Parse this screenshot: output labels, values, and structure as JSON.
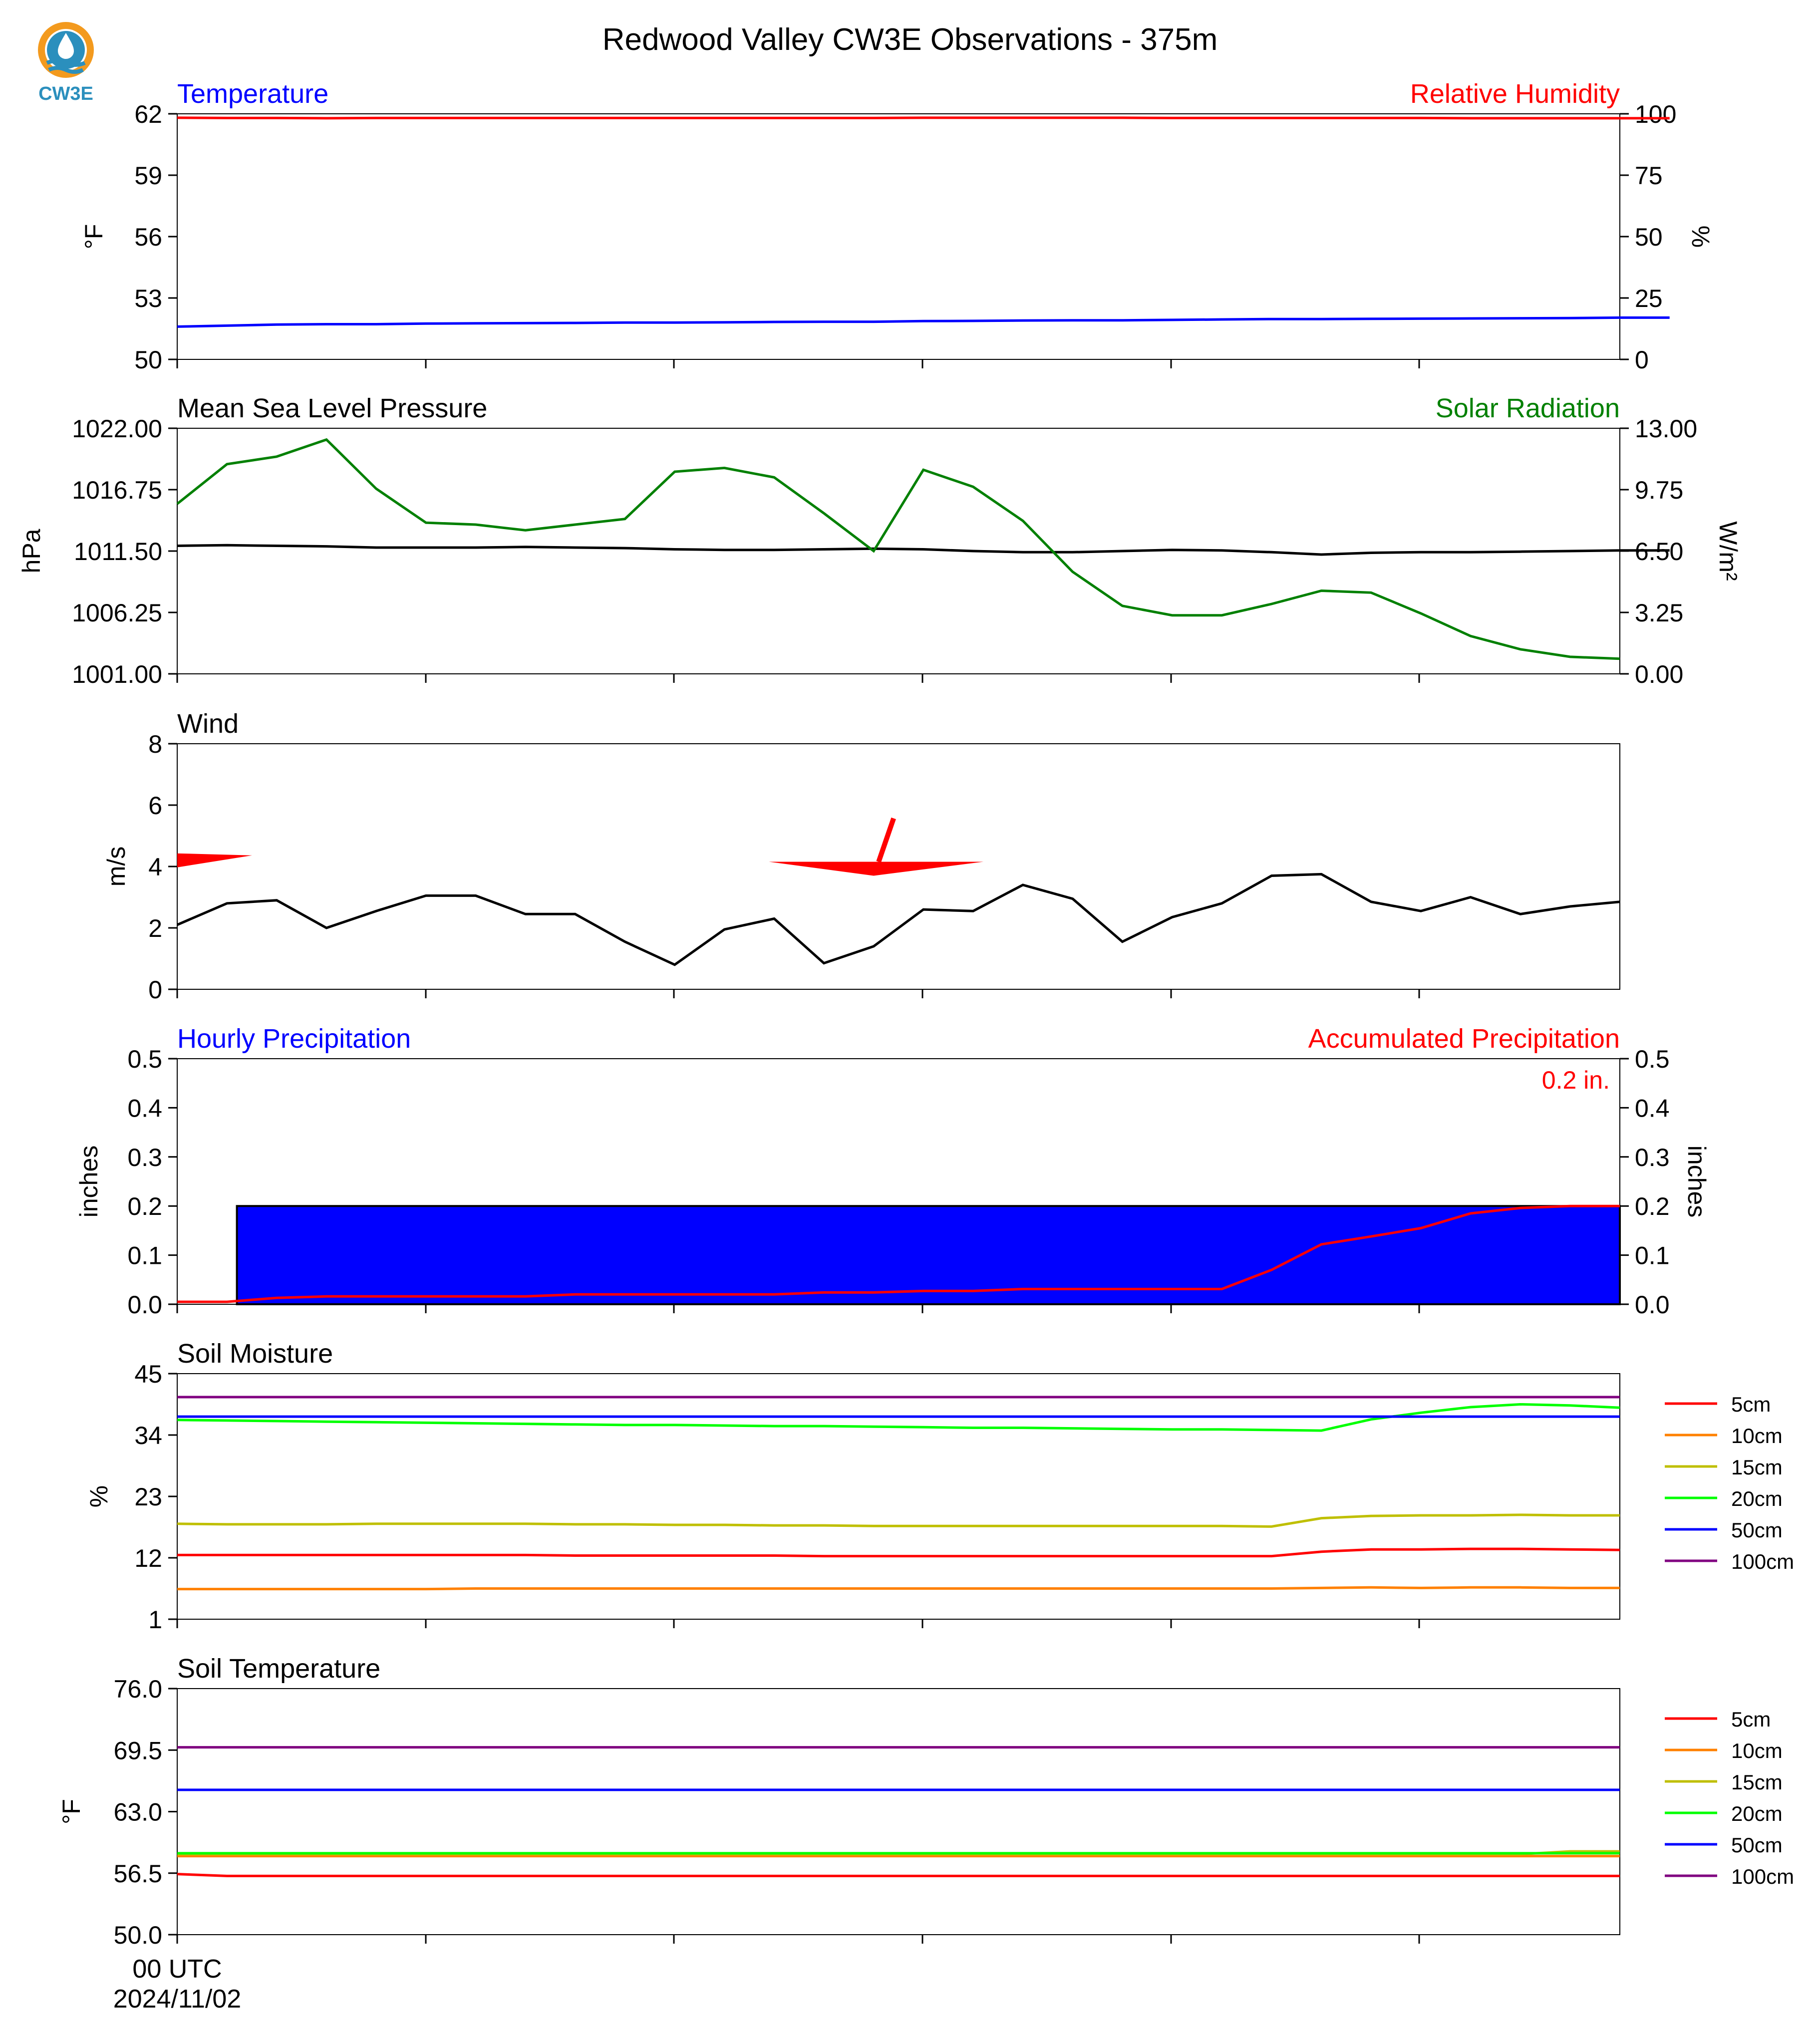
{
  "title": "Redwood Valley CW3E Observations - 375m",
  "logo": {
    "text": "CW3E"
  },
  "x_axis": {
    "ticks": [
      "00 UTC\n2024/11/02",
      "",
      "",
      "",
      "",
      ""
    ],
    "first_label_line1": "00 UTC",
    "first_label_line2": "2024/11/02"
  },
  "colors": {
    "temperature": "#0000ff",
    "humidity": "#ff0000",
    "pressure": "#000000",
    "solar": "#008000",
    "wind": "#000000",
    "barb": "#ff0000",
    "hourly_precip": "#0000ff",
    "accum_precip": "#ff0000",
    "d5": "#ff0000",
    "d10": "#ff8000",
    "d15": "#bfbf00",
    "d20": "#00ff00",
    "d50": "#0000ff",
    "d100": "#800080"
  },
  "chart_data": [
    {
      "type": "line",
      "title_left": "Temperature",
      "title_right": "Relative Humidity",
      "ylabel": "°F",
      "ylabel_right": "%",
      "ylim": [
        50,
        62
      ],
      "yticks": [
        "62",
        "59",
        "56",
        "53",
        "50"
      ],
      "ylim_right": [
        0,
        100
      ],
      "yticks_right": [
        "100",
        "75",
        "50",
        "25",
        "0"
      ],
      "series": [
        {
          "name": "Temperature",
          "axis": "left",
          "color": "#0000ff",
          "values": [
            51.6,
            51.65,
            51.7,
            51.72,
            51.72,
            51.75,
            51.76,
            51.77,
            51.78,
            51.8,
            51.8,
            51.81,
            51.83,
            51.84,
            51.84,
            51.87,
            51.88,
            51.9,
            51.91,
            51.91,
            51.93,
            51.95,
            51.97,
            51.97,
            51.98,
            51.99,
            52.0,
            52.01,
            52.02,
            52.04,
            52.04
          ]
        },
        {
          "name": "Relative Humidity",
          "axis": "right",
          "color": "#ff0000",
          "values": [
            98.4,
            98.3,
            98.3,
            98.2,
            98.3,
            98.3,
            98.3,
            98.3,
            98.3,
            98.3,
            98.3,
            98.3,
            98.3,
            98.3,
            98.3,
            98.4,
            98.4,
            98.4,
            98.4,
            98.4,
            98.3,
            98.3,
            98.3,
            98.3,
            98.3,
            98.3,
            98.2,
            98.2,
            98.2,
            98.2,
            98.2
          ]
        }
      ]
    },
    {
      "type": "line",
      "title_left": "Mean Sea Level Pressure",
      "title_right": "Solar Radiation",
      "ylabel": "hPa",
      "ylabel_right": "W/m²",
      "ylim": [
        1001.0,
        1022.0
      ],
      "yticks": [
        "1022.00",
        "1016.75",
        "1011.50",
        "1006.25",
        "1001.00"
      ],
      "ylim_right": [
        0.0,
        13.0
      ],
      "yticks_right": [
        "13.00",
        "9.75",
        "6.50",
        "3.25",
        "0.00"
      ],
      "series": [
        {
          "name": "Mean Sea Level Pressure",
          "axis": "left",
          "color": "#000000",
          "values": [
            1011.95,
            1012.0,
            1011.95,
            1011.9,
            1011.8,
            1011.8,
            1011.8,
            1011.85,
            1011.8,
            1011.75,
            1011.65,
            1011.6,
            1011.6,
            1011.65,
            1011.7,
            1011.65,
            1011.5,
            1011.4,
            1011.4,
            1011.5,
            1011.6,
            1011.55,
            1011.4,
            1011.2,
            1011.35,
            1011.4,
            1011.4,
            1011.45,
            1011.5,
            1011.55,
            1011.55
          ]
        },
        {
          "name": "Solar Radiation",
          "axis": "right",
          "color": "#008000",
          "values": [
            9.0,
            11.1,
            11.5,
            12.4,
            9.8,
            8.0,
            7.9,
            7.6,
            7.9,
            8.2,
            10.7,
            10.9,
            10.4,
            8.5,
            6.5,
            10.8,
            9.9,
            8.1,
            5.4,
            3.6,
            3.1,
            3.1,
            3.7,
            4.4,
            4.3,
            3.2,
            2.0,
            1.3,
            0.9,
            0.8
          ]
        }
      ]
    },
    {
      "type": "line",
      "title_left": "Wind",
      "ylabel": "m/s",
      "ylim": [
        0,
        8
      ],
      "yticks": [
        "8",
        "6",
        "4",
        "2",
        "0"
      ],
      "series": [
        {
          "name": "Wind",
          "axis": "left",
          "color": "#000000",
          "values": [
            2.1,
            2.8,
            2.9,
            2.0,
            2.55,
            3.05,
            3.05,
            2.45,
            2.45,
            1.55,
            0.8,
            1.95,
            2.3,
            0.85,
            1.4,
            2.6,
            2.55,
            3.4,
            2.95,
            1.55,
            2.35,
            2.8,
            3.7,
            3.75,
            2.85,
            2.55,
            3.0,
            2.45,
            2.7,
            2.85
          ]
        }
      ],
      "barbs": [
        {
          "hour": 0,
          "speed_level": 4.2
        },
        {
          "hour": 14,
          "speed_level": 3.7
        }
      ]
    },
    {
      "type": "bar",
      "title_left": "Hourly Precipitation",
      "title_right": "Accumulated Precipitation",
      "annotation": "0.2 in.",
      "ylabel": "inches",
      "ylabel_right": "inches",
      "ylim": [
        0.0,
        0.5
      ],
      "yticks": [
        "0.5",
        "0.4",
        "0.3",
        "0.2",
        "0.1",
        "0.0"
      ],
      "ylim_right": [
        0.0,
        0.5
      ],
      "yticks_right": [
        "0.5",
        "0.4",
        "0.3",
        "0.2",
        "0.1",
        "0.0"
      ],
      "hourly": {
        "start_hour": 1.2,
        "end_hour": 29,
        "value": 0.2
      },
      "series": [
        {
          "name": "Accumulated Precipitation",
          "axis": "right",
          "color": "#ff0000",
          "values": [
            0.005,
            0.005,
            0.013,
            0.016,
            0.016,
            0.016,
            0.016,
            0.016,
            0.02,
            0.02,
            0.02,
            0.02,
            0.02,
            0.024,
            0.024,
            0.027,
            0.027,
            0.031,
            0.031,
            0.031,
            0.031,
            0.031,
            0.07,
            0.122,
            0.138,
            0.155,
            0.185,
            0.196,
            0.2,
            0.2
          ]
        }
      ]
    },
    {
      "type": "line",
      "title_left": "Soil Moisture",
      "ylabel": "%",
      "ylim": [
        1,
        45
      ],
      "yticks": [
        "45",
        "34",
        "23",
        "12",
        "1"
      ],
      "legend": [
        "5cm",
        "10cm",
        "15cm",
        "20cm",
        "50cm",
        "100cm"
      ],
      "series": [
        {
          "name": "5cm",
          "color": "#ff0000",
          "values": [
            12.5,
            12.5,
            12.5,
            12.5,
            12.5,
            12.5,
            12.5,
            12.5,
            12.4,
            12.4,
            12.4,
            12.4,
            12.4,
            12.3,
            12.3,
            12.3,
            12.3,
            12.3,
            12.3,
            12.3,
            12.3,
            12.3,
            12.3,
            13.1,
            13.5,
            13.5,
            13.6,
            13.6,
            13.5,
            13.4
          ]
        },
        {
          "name": "10cm",
          "color": "#ff8000",
          "values": [
            6.4,
            6.4,
            6.4,
            6.4,
            6.4,
            6.4,
            6.5,
            6.5,
            6.5,
            6.5,
            6.5,
            6.5,
            6.5,
            6.5,
            6.5,
            6.5,
            6.5,
            6.5,
            6.5,
            6.5,
            6.5,
            6.5,
            6.5,
            6.6,
            6.7,
            6.6,
            6.7,
            6.7,
            6.6,
            6.6
          ]
        },
        {
          "name": "15cm",
          "color": "#bfbf00",
          "values": [
            18.1,
            18.0,
            18.0,
            18.0,
            18.1,
            18.1,
            18.1,
            18.1,
            18.0,
            18.0,
            17.9,
            17.9,
            17.8,
            17.8,
            17.7,
            17.7,
            17.7,
            17.7,
            17.7,
            17.7,
            17.7,
            17.7,
            17.6,
            19.1,
            19.5,
            19.6,
            19.6,
            19.7,
            19.6,
            19.6
          ]
        },
        {
          "name": "20cm",
          "color": "#00ff00",
          "values": [
            36.7,
            36.6,
            36.5,
            36.4,
            36.3,
            36.2,
            36.1,
            36.0,
            35.9,
            35.8,
            35.8,
            35.7,
            35.6,
            35.6,
            35.5,
            35.4,
            35.3,
            35.3,
            35.2,
            35.1,
            35.0,
            35.0,
            34.9,
            34.8,
            36.8,
            38.0,
            39.0,
            39.5,
            39.3,
            38.9
          ]
        },
        {
          "name": "50cm",
          "color": "#0000ff",
          "values": [
            37.3,
            37.3,
            37.3,
            37.3,
            37.3,
            37.3,
            37.3,
            37.3,
            37.3,
            37.3,
            37.3,
            37.3,
            37.3,
            37.3,
            37.3,
            37.3,
            37.3,
            37.3,
            37.3,
            37.3,
            37.3,
            37.3,
            37.3,
            37.3,
            37.3,
            37.3,
            37.3,
            37.3,
            37.3,
            37.3
          ]
        },
        {
          "name": "100cm",
          "color": "#800080",
          "values": [
            40.8,
            40.8,
            40.8,
            40.8,
            40.8,
            40.8,
            40.8,
            40.8,
            40.8,
            40.8,
            40.8,
            40.8,
            40.8,
            40.8,
            40.8,
            40.8,
            40.8,
            40.8,
            40.8,
            40.8,
            40.8,
            40.8,
            40.8,
            40.8,
            40.8,
            40.8,
            40.8,
            40.8,
            40.8,
            40.8
          ]
        }
      ]
    },
    {
      "type": "line",
      "title_left": "Soil Temperature",
      "ylabel": "°F",
      "ylim": [
        50.0,
        76.0
      ],
      "yticks": [
        "76.0",
        "69.5",
        "63.0",
        "56.5",
        "50.0"
      ],
      "legend": [
        "5cm",
        "10cm",
        "15cm",
        "20cm",
        "50cm",
        "100cm"
      ],
      "series": [
        {
          "name": "5cm",
          "color": "#ff0000",
          "values": [
            56.4,
            56.2,
            56.2,
            56.2,
            56.2,
            56.2,
            56.2,
            56.2,
            56.2,
            56.2,
            56.2,
            56.2,
            56.2,
            56.2,
            56.2,
            56.2,
            56.2,
            56.2,
            56.2,
            56.2,
            56.2,
            56.2,
            56.2,
            56.2,
            56.2,
            56.2,
            56.2,
            56.2,
            56.2,
            56.2
          ]
        },
        {
          "name": "10cm",
          "color": "#ff8000",
          "values": [
            58.3,
            58.3,
            58.3,
            58.3,
            58.3,
            58.3,
            58.3,
            58.3,
            58.3,
            58.3,
            58.3,
            58.3,
            58.3,
            58.3,
            58.3,
            58.3,
            58.3,
            58.3,
            58.3,
            58.3,
            58.3,
            58.3,
            58.3,
            58.3,
            58.3,
            58.3,
            58.3,
            58.3,
            58.3,
            58.3
          ]
        },
        {
          "name": "15cm",
          "color": "#bfbf00",
          "values": [
            58.5,
            58.5,
            58.5,
            58.5,
            58.5,
            58.5,
            58.5,
            58.5,
            58.5,
            58.5,
            58.5,
            58.5,
            58.5,
            58.5,
            58.5,
            58.5,
            58.5,
            58.5,
            58.5,
            58.5,
            58.5,
            58.5,
            58.5,
            58.5,
            58.5,
            58.5,
            58.5,
            58.5,
            58.8,
            58.8
          ]
        },
        {
          "name": "20cm",
          "color": "#00ff00",
          "values": [
            58.6,
            58.6,
            58.6,
            58.6,
            58.6,
            58.6,
            58.6,
            58.6,
            58.6,
            58.6,
            58.6,
            58.6,
            58.6,
            58.6,
            58.6,
            58.6,
            58.6,
            58.6,
            58.6,
            58.6,
            58.6,
            58.6,
            58.6,
            58.6,
            58.6,
            58.6,
            58.6,
            58.6,
            58.6,
            58.6
          ]
        },
        {
          "name": "50cm",
          "color": "#0000ff",
          "values": [
            65.3,
            65.3,
            65.3,
            65.3,
            65.3,
            65.3,
            65.3,
            65.3,
            65.3,
            65.3,
            65.3,
            65.3,
            65.3,
            65.3,
            65.3,
            65.3,
            65.3,
            65.3,
            65.3,
            65.3,
            65.3,
            65.3,
            65.3,
            65.3,
            65.3,
            65.3,
            65.3,
            65.3,
            65.3,
            65.3
          ]
        },
        {
          "name": "100cm",
          "color": "#800080",
          "values": [
            69.8,
            69.8,
            69.8,
            69.8,
            69.8,
            69.8,
            69.8,
            69.8,
            69.8,
            69.8,
            69.8,
            69.8,
            69.8,
            69.8,
            69.8,
            69.8,
            69.8,
            69.8,
            69.8,
            69.8,
            69.8,
            69.8,
            69.8,
            69.8,
            69.8,
            69.8,
            69.8,
            69.8,
            69.8,
            69.8
          ]
        }
      ]
    }
  ]
}
